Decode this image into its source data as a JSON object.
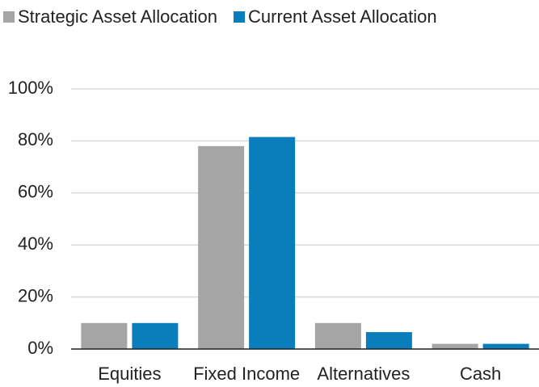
{
  "chart_data": {
    "type": "bar",
    "categories": [
      "Equities",
      "Fixed Income",
      "Alternatives",
      "Cash"
    ],
    "series": [
      {
        "name": "Strategic Asset Allocation",
        "color": "#a5a5a5",
        "values": [
          10,
          78,
          10,
          2
        ]
      },
      {
        "name": "Current Asset Allocation",
        "color": "#0a7dbd",
        "values": [
          10,
          81.5,
          6.5,
          2
        ]
      }
    ],
    "ylim": [
      0,
      100
    ],
    "yticks": [
      {
        "value": 0,
        "label": "0%"
      },
      {
        "value": 20,
        "label": "20%"
      },
      {
        "value": 40,
        "label": "40%"
      },
      {
        "value": 60,
        "label": "60%"
      },
      {
        "value": 80,
        "label": "80%"
      },
      {
        "value": 100,
        "label": "100%"
      }
    ],
    "grid": true,
    "legend": "top"
  }
}
